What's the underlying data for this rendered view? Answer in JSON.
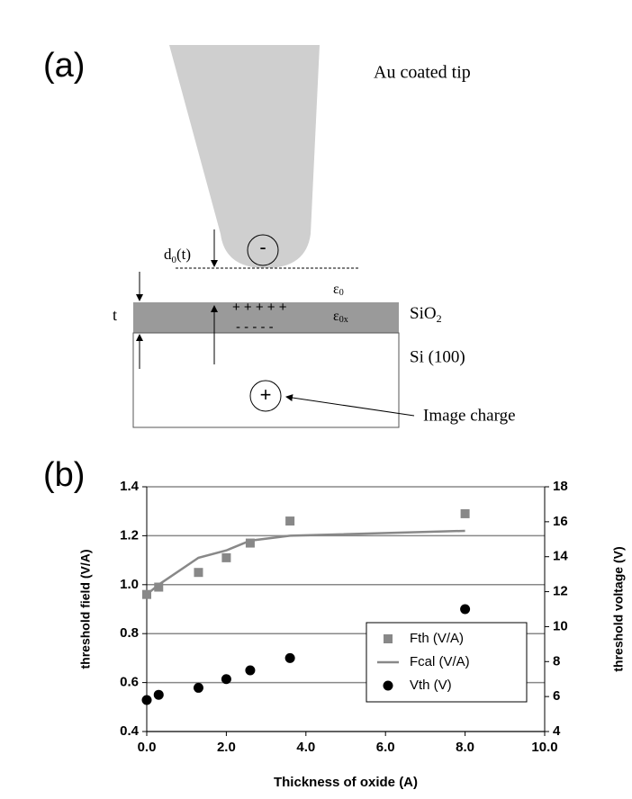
{
  "diagram": {
    "panel_label": "(a)",
    "tip_label": "Au coated tip",
    "tip_charge": "-",
    "gap_label": {
      "base": "d",
      "sub": "0",
      "rest": "(t)"
    },
    "eps_vacuum": {
      "base": "ε",
      "sub": "0"
    },
    "eps_oxide": {
      "base": "ε",
      "sub": "0x"
    },
    "plus_row": "+ + + + +",
    "minus_row": "- - - - -",
    "thickness_label": "t",
    "oxide_label": {
      "base": "SiO",
      "sub": "2"
    },
    "substrate_label": "Si (100)",
    "image_charge": "+",
    "image_label": "Image charge"
  },
  "chart_data": {
    "type": "scatter",
    "panel_label": "(b)",
    "x_label": "Thickness of oxide (A)",
    "y_label": "threshold field (V/A)",
    "y2_label": "threshold voltage (V)",
    "xlim": [
      0,
      10
    ],
    "xticks": [
      {
        "value": 0,
        "label": "0.0"
      },
      {
        "value": 2,
        "label": "2.0"
      },
      {
        "value": 4,
        "label": "4.0"
      },
      {
        "value": 6,
        "label": "6.0"
      },
      {
        "value": 8,
        "label": "8.0"
      },
      {
        "value": 10,
        "label": "10.0"
      }
    ],
    "ylim": [
      0.4,
      1.4
    ],
    "yticks": [
      0.4,
      0.6,
      0.8,
      {
        "value": 1,
        "label": "1.0"
      },
      1.2,
      1.4
    ],
    "y2lim": [
      4,
      18
    ],
    "y2ticks": [
      4,
      6,
      8,
      10,
      12,
      14,
      16,
      18
    ],
    "grid": true,
    "legend": "lower right",
    "series": [
      {
        "name": "Fth (V/A)",
        "marker": "square",
        "color": "#888888",
        "x": [
          0,
          0.3,
          1.3,
          2.0,
          2.6,
          3.6,
          8
        ],
        "values": [
          0.96,
          0.99,
          1.05,
          1.11,
          1.17,
          1.26,
          1.29
        ]
      },
      {
        "name": "Fcal (V/A)",
        "marker": "line",
        "color": "#888888",
        "x": [
          0,
          0.3,
          1.3,
          2.0,
          2.6,
          3.6,
          8
        ],
        "values": [
          0.96,
          1.0,
          1.11,
          1.14,
          1.18,
          1.2,
          1.22
        ]
      },
      {
        "name": "Vth (V)",
        "marker": "circle",
        "color": "#000000",
        "axis": "y2",
        "x": [
          0,
          0.3,
          1.3,
          2.0,
          2.6,
          3.6,
          8
        ],
        "values": [
          5.8,
          6.1,
          6.5,
          7.0,
          7.5,
          8.2,
          11
        ]
      }
    ]
  }
}
